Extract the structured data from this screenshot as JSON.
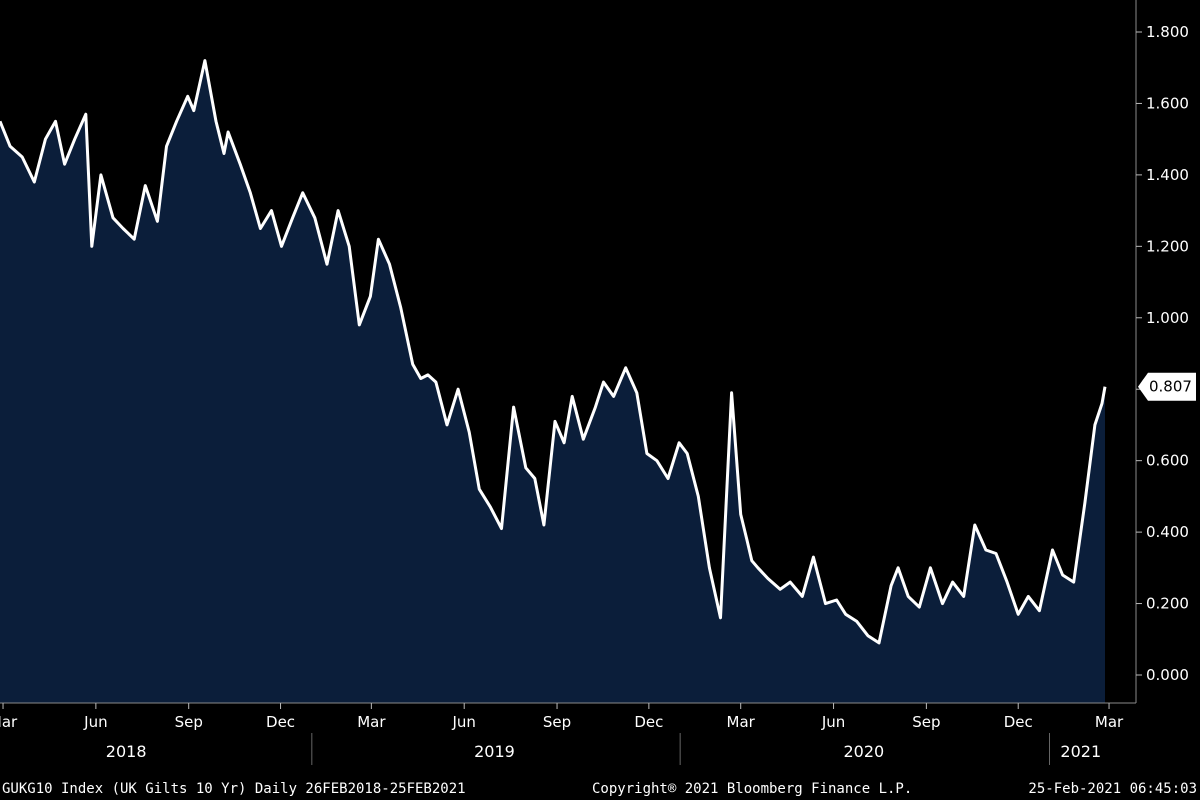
{
  "chart_data": {
    "type": "area",
    "title": "",
    "xlabel": "",
    "ylabel": "",
    "ylim": [
      0,
      1.8
    ],
    "y_ticks": [
      "0.000",
      "0.200",
      "0.400",
      "0.600",
      "0.800",
      "1.000",
      "1.200",
      "1.400",
      "1.600",
      "1.800"
    ],
    "x_ticks": [
      {
        "label": "Mar",
        "date": "2018-03-01"
      },
      {
        "label": "Jun",
        "date": "2018-06-01"
      },
      {
        "label": "Sep",
        "date": "2018-09-01"
      },
      {
        "label": "Dec",
        "date": "2018-12-01"
      },
      {
        "label": "Mar",
        "date": "2019-03-01"
      },
      {
        "label": "Jun",
        "date": "2019-06-01"
      },
      {
        "label": "Sep",
        "date": "2019-09-01"
      },
      {
        "label": "Dec",
        "date": "2019-12-01"
      },
      {
        "label": "Mar",
        "date": "2020-03-01"
      },
      {
        "label": "Jun",
        "date": "2020-06-01"
      },
      {
        "label": "Sep",
        "date": "2020-09-01"
      },
      {
        "label": "Dec",
        "date": "2020-12-01"
      },
      {
        "label": "Mar",
        "date": "2021-03-01"
      }
    ],
    "years": [
      {
        "label": "2018",
        "date": "2018-07-01"
      },
      {
        "label": "2019",
        "date": "2019-07-01"
      },
      {
        "label": "2020",
        "date": "2020-07-01"
      },
      {
        "label": "2021",
        "date": "2021-02-01"
      }
    ],
    "year_separators": [
      "2019-01-01",
      "2020-01-01",
      "2021-01-01"
    ],
    "last_value_label": "0.807",
    "colors": {
      "background": "#000000",
      "fill": "#0b1e3a",
      "line": "#ffffff"
    },
    "series": [
      {
        "x": [
          "2018-02-26",
          "2018-03-08",
          "2018-03-20",
          "2018-04-01",
          "2018-04-12",
          "2018-04-22",
          "2018-05-01",
          "2018-05-11",
          "2018-05-22",
          "2018-05-28",
          "2018-06-06",
          "2018-06-18",
          "2018-06-28",
          "2018-07-09",
          "2018-07-20",
          "2018-08-01",
          "2018-08-10",
          "2018-08-20",
          "2018-08-31",
          "2018-09-06",
          "2018-09-17",
          "2018-09-28",
          "2018-10-06",
          "2018-10-10",
          "2018-10-22",
          "2018-11-01",
          "2018-11-11",
          "2018-11-22",
          "2018-12-02",
          "2018-12-13",
          "2018-12-23",
          "2019-01-04",
          "2019-01-16",
          "2019-01-27",
          "2019-02-07",
          "2019-02-17",
          "2019-02-28",
          "2019-03-08",
          "2019-03-19",
          "2019-03-30",
          "2019-04-11",
          "2019-04-19",
          "2019-04-26",
          "2019-05-04",
          "2019-05-15",
          "2019-05-26",
          "2019-06-06",
          "2019-06-16",
          "2019-06-27",
          "2019-07-08",
          "2019-07-20",
          "2019-08-01",
          "2019-08-10",
          "2019-08-19",
          "2019-08-30",
          "2019-09-08",
          "2019-09-16",
          "2019-09-27",
          "2019-10-09",
          "2019-10-17",
          "2019-10-27",
          "2019-11-08",
          "2019-11-19",
          "2019-11-29",
          "2019-12-09",
          "2019-12-20",
          "2019-12-31",
          "2020-01-08",
          "2020-01-19",
          "2020-01-30",
          "2020-02-10",
          "2020-02-21",
          "2020-03-01",
          "2020-03-07",
          "2020-03-12",
          "2020-03-18",
          "2020-03-28",
          "2020-04-09",
          "2020-04-19",
          "2020-05-01",
          "2020-05-12",
          "2020-05-24",
          "2020-06-04",
          "2020-06-13",
          "2020-06-24",
          "2020-07-05",
          "2020-07-16",
          "2020-07-28",
          "2020-08-04",
          "2020-08-14",
          "2020-08-25",
          "2020-09-05",
          "2020-09-17",
          "2020-09-27",
          "2020-10-08",
          "2020-10-19",
          "2020-10-30",
          "2020-11-09",
          "2020-11-20",
          "2020-12-01",
          "2020-12-11",
          "2020-12-22",
          "2021-01-04",
          "2021-01-14",
          "2021-01-25",
          "2021-02-05",
          "2021-02-15",
          "2021-02-22",
          "2021-02-25"
        ],
        "values": [
          1.55,
          1.48,
          1.45,
          1.38,
          1.5,
          1.55,
          1.43,
          1.5,
          1.57,
          1.2,
          1.4,
          1.28,
          1.25,
          1.22,
          1.37,
          1.27,
          1.48,
          1.55,
          1.62,
          1.58,
          1.72,
          1.55,
          1.46,
          1.52,
          1.43,
          1.35,
          1.25,
          1.3,
          1.2,
          1.28,
          1.35,
          1.28,
          1.15,
          1.3,
          1.2,
          0.98,
          1.06,
          1.22,
          1.15,
          1.03,
          0.87,
          0.83,
          0.84,
          0.82,
          0.7,
          0.8,
          0.68,
          0.52,
          0.47,
          0.41,
          0.75,
          0.58,
          0.55,
          0.42,
          0.71,
          0.65,
          0.78,
          0.66,
          0.75,
          0.82,
          0.78,
          0.86,
          0.79,
          0.62,
          0.6,
          0.55,
          0.65,
          0.62,
          0.5,
          0.3,
          0.16,
          0.79,
          0.45,
          0.38,
          0.32,
          0.3,
          0.27,
          0.24,
          0.26,
          0.22,
          0.33,
          0.2,
          0.21,
          0.17,
          0.15,
          0.11,
          0.09,
          0.25,
          0.3,
          0.22,
          0.19,
          0.3,
          0.2,
          0.26,
          0.22,
          0.42,
          0.35,
          0.34,
          0.26,
          0.17,
          0.22,
          0.18,
          0.35,
          0.28,
          0.26,
          0.48,
          0.7,
          0.76,
          0.807
        ]
      }
    ]
  },
  "footer": {
    "left": "GUKG10 Index (UK Gilts 10 Yr)  Daily 26FEB2018-25FEB2021",
    "center": "Copyright® 2021 Bloomberg Finance L.P.",
    "right": "25-Feb-2021 06:45:03"
  }
}
